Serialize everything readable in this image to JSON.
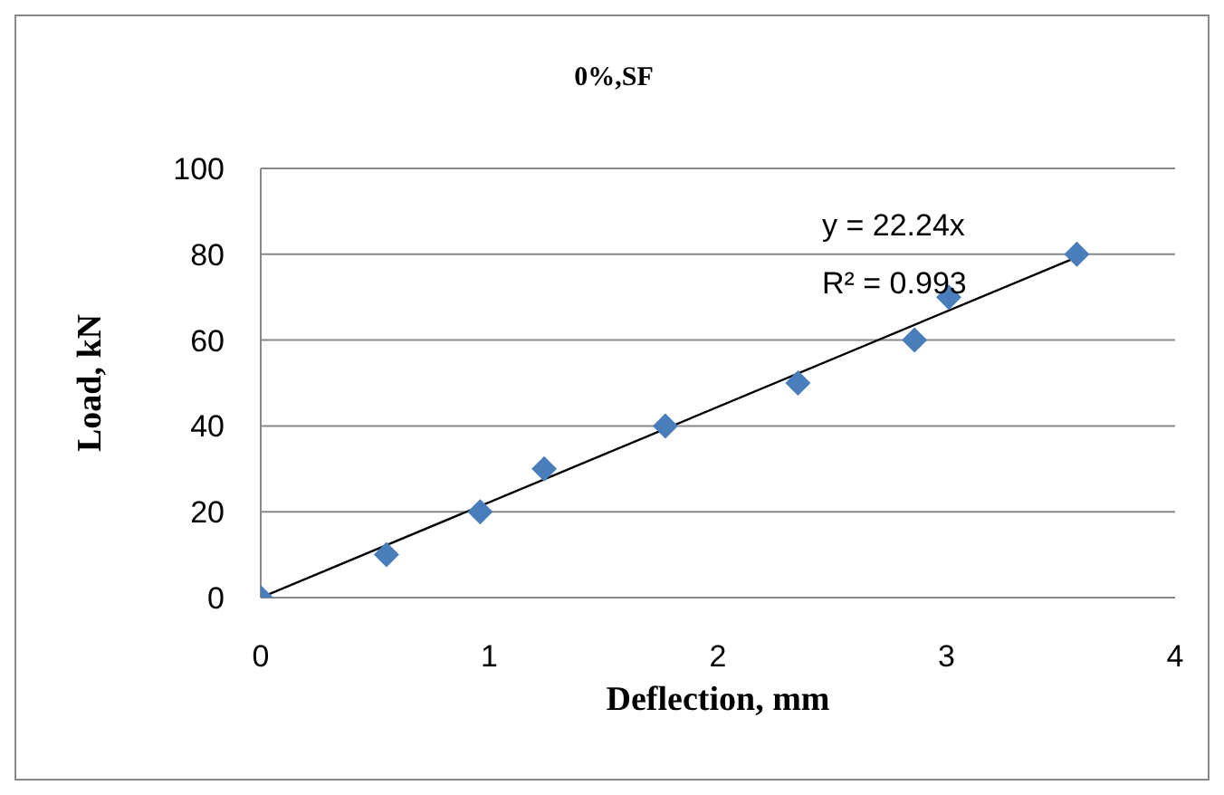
{
  "chart_data": {
    "type": "scatter",
    "title": "0%,SF",
    "xlabel": "Deflection, mm",
    "ylabel": "Load, kN",
    "x": [
      0,
      0.55,
      0.96,
      1.24,
      1.77,
      2.35,
      2.86,
      3.01,
      3.57
    ],
    "series": [
      {
        "color": "#4a7ebb",
        "values": [
          0,
          10,
          20,
          30,
          40,
          50,
          60,
          70,
          80
        ],
        "marker": "diamond"
      },
      {
        "type": "line",
        "color": "#000000",
        "x": [
          0,
          3.6
        ],
        "values": [
          0,
          80
        ],
        "marker": "none"
      }
    ],
    "annotations": [
      "y = 22.24x",
      "R² = 0.993"
    ],
    "xlim": [
      0,
      4
    ],
    "xticks": [
      0,
      1,
      2,
      3,
      4
    ],
    "ylim": [
      0,
      100
    ],
    "yticks": [
      0,
      20,
      40,
      60,
      80,
      100
    ],
    "grid": "y"
  }
}
